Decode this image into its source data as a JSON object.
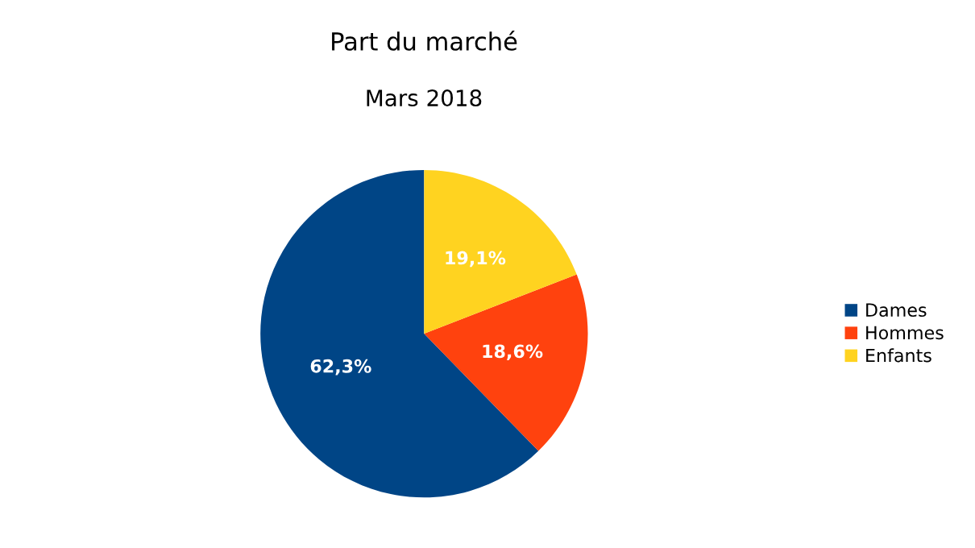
{
  "chart_data": {
    "type": "pie",
    "title": "Part du marché",
    "subtitle": "Mars 2018",
    "categories": [
      "Dames",
      "Hommes",
      "Enfants"
    ],
    "values": [
      62.3,
      18.6,
      19.1
    ],
    "colors": [
      "#004586",
      "#ff420e",
      "#ffd320"
    ],
    "value_labels": [
      "62,3%",
      "18,6%",
      "19,1%"
    ],
    "legend": "right"
  }
}
